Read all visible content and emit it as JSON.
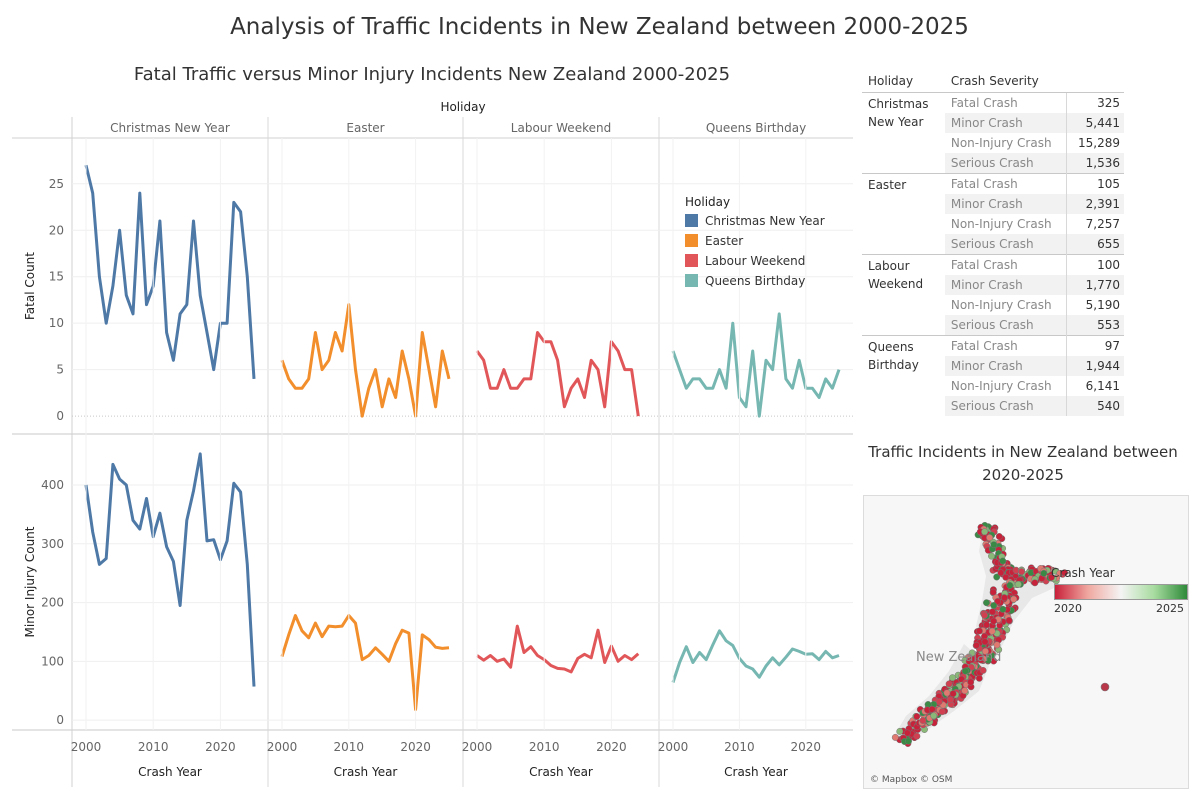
{
  "dashboard": {
    "title": "Analysis of Traffic Incidents in New Zealand between 2000-2025"
  },
  "chart_data": {
    "type": "line",
    "title": "Fatal Traffic versus Minor Injury Incidents New Zealand 2000-2025",
    "column_header": "Holiday",
    "xlabel": "Crash Year",
    "panels": [
      "Christmas New Year",
      "Easter",
      "Labour Weekend",
      "Queens Birthday"
    ],
    "colors": [
      "#4e79a7",
      "#f28e2b",
      "#e15759",
      "#76b7b2"
    ],
    "x": [
      2000,
      2001,
      2002,
      2003,
      2004,
      2005,
      2006,
      2007,
      2008,
      2009,
      2010,
      2011,
      2012,
      2013,
      2014,
      2015,
      2016,
      2017,
      2018,
      2019,
      2020,
      2021,
      2022,
      2023,
      2024,
      2025
    ],
    "xticks": [
      2000,
      2010,
      2020
    ],
    "rows": [
      {
        "ylabel": "Fatal Count",
        "ylim": [
          -1.5,
          29.5
        ],
        "yticks": [
          0,
          5,
          10,
          15,
          20,
          25
        ],
        "zero_line": true,
        "series": [
          {
            "name": "Christmas New Year",
            "values": [
              27,
              24,
              15,
              10,
              14,
              20,
              13,
              11,
              24,
              12,
              14,
              21,
              9,
              6,
              11,
              12,
              21,
              13,
              9,
              5,
              10,
              10,
              23,
              22,
              15,
              4
            ]
          },
          {
            "name": "Easter",
            "values": [
              6,
              4,
              3,
              3,
              4,
              9,
              5,
              6,
              9,
              7,
              12,
              5,
              0,
              3,
              5,
              1,
              4,
              2,
              7,
              4,
              0,
              9,
              5,
              1,
              7,
              4
            ]
          },
          {
            "name": "Labour Weekend",
            "values": [
              7,
              6,
              3,
              3,
              5,
              3,
              3,
              4,
              4,
              9,
              8,
              8,
              6,
              1,
              3,
              4,
              2,
              6,
              5,
              1,
              8,
              7,
              5,
              5,
              0
            ]
          },
          {
            "name": "Queens Birthday",
            "values": [
              7,
              5,
              3,
              4,
              4,
              3,
              3,
              5,
              3,
              10,
              2,
              1,
              7,
              0,
              6,
              5,
              11,
              4,
              3,
              6,
              3,
              3,
              2,
              4,
              3,
              5
            ]
          }
        ]
      },
      {
        "ylabel": "Minor Injury Count",
        "ylim": [
          -10,
          480
        ],
        "yticks": [
          0,
          100,
          200,
          300,
          400
        ],
        "zero_line": false,
        "series": [
          {
            "name": "Christmas New Year",
            "values": [
              400,
              320,
              265,
              275,
              435,
              410,
              400,
              340,
              325,
              377,
              312,
              352,
              295,
              270,
              195,
              340,
              390,
              453,
              305,
              307,
              273,
              305,
              403,
              388,
              265,
              57
            ]
          },
          {
            "name": "Easter",
            "values": [
              108,
              145,
              178,
              152,
              140,
              165,
              142,
              160,
              159,
              160,
              178,
              165,
              103,
              110,
              123,
              112,
              100,
              130,
              153,
              148,
              18,
              145,
              137,
              124,
              122,
              123
            ]
          },
          {
            "name": "Labour Weekend",
            "values": [
              110,
              102,
              110,
              100,
              104,
              90,
              160,
              115,
              125,
              110,
              103,
              93,
              88,
              87,
              82,
              105,
              112,
              106,
              153,
              98,
              126,
              100,
              110,
              103,
              113
            ]
          },
          {
            "name": "Queens Birthday",
            "values": [
              64,
              98,
              125,
              98,
              115,
              103,
              128,
              152,
              135,
              127,
              105,
              92,
              87,
              73,
              92,
              106,
              94,
              107,
              121,
              117,
              112,
              113,
              103,
              117,
              106,
              110
            ]
          }
        ]
      }
    ],
    "legend": {
      "title": "Holiday",
      "entries": [
        "Christmas New Year",
        "Easter",
        "Labour Weekend",
        "Queens Birthday"
      ]
    }
  },
  "severity_table": {
    "header_holiday": "Holiday",
    "header_severity": "Crash Severity",
    "groups": [
      {
        "name": "Christmas New Year",
        "rows": [
          [
            "Fatal Crash",
            "325"
          ],
          [
            "Minor Crash",
            "5,441"
          ],
          [
            "Non-Injury Crash",
            "15,289"
          ],
          [
            "Serious Crash",
            "1,536"
          ]
        ]
      },
      {
        "name": "Easter",
        "rows": [
          [
            "Fatal Crash",
            "105"
          ],
          [
            "Minor Crash",
            "2,391"
          ],
          [
            "Non-Injury Crash",
            "7,257"
          ],
          [
            "Serious Crash",
            "655"
          ]
        ]
      },
      {
        "name": "Labour Weekend",
        "rows": [
          [
            "Fatal Crash",
            "100"
          ],
          [
            "Minor Crash",
            "1,770"
          ],
          [
            "Non-Injury Crash",
            "5,190"
          ],
          [
            "Serious Crash",
            "553"
          ]
        ]
      },
      {
        "name": "Queens Birthday",
        "rows": [
          [
            "Fatal Crash",
            "97"
          ],
          [
            "Minor Crash",
            "1,944"
          ],
          [
            "Non-Injury Crash",
            "6,141"
          ],
          [
            "Serious Crash",
            "540"
          ]
        ]
      }
    ]
  },
  "map": {
    "title": "Traffic Incidents in New Zealand between 2020-2025",
    "label": "New Zealand",
    "credit": "© Mapbox © OSM",
    "legend": {
      "title": "Crash Year",
      "min": "2020",
      "max": "2025"
    }
  }
}
